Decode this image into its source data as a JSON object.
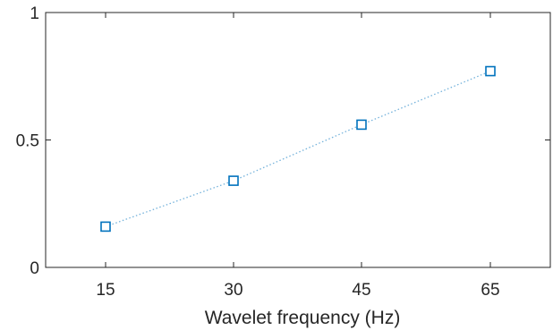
{
  "chart_data": {
    "type": "line",
    "title": "",
    "xlabel": "Wavelet frequency (Hz)",
    "ylabel": "",
    "x": [
      15,
      30,
      45,
      65
    ],
    "x_tick_labels": [
      "15",
      "30",
      "45",
      "65"
    ],
    "y_tick_labels": [
      "0",
      "0.5",
      "1"
    ],
    "y_ticks": [
      0,
      0.5,
      1
    ],
    "series": [
      {
        "values": [
          0.16,
          0.34,
          0.56,
          0.77
        ],
        "marker": "square",
        "line_style": "dotted"
      }
    ],
    "ylim": [
      0,
      1
    ],
    "grid": false,
    "legend": "none",
    "colors": {
      "series": "#0072BD",
      "axes": "#262626",
      "background": "#ffffff"
    }
  }
}
